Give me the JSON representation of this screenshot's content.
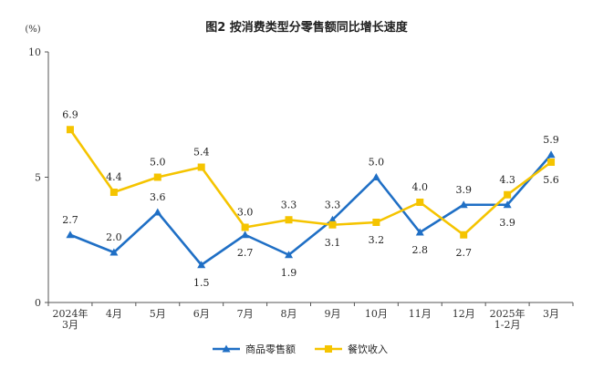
{
  "chart_data": {
    "type": "line",
    "title": "图2  按消费类型分零售额同比增长速度",
    "unit": "(%)",
    "ylim": [
      0,
      10
    ],
    "yticks": [
      "0",
      "5",
      "10"
    ],
    "categories": [
      [
        "2024年",
        "3月"
      ],
      [
        "4月"
      ],
      [
        "5月"
      ],
      [
        "6月"
      ],
      [
        "7月"
      ],
      [
        "8月"
      ],
      [
        "9月"
      ],
      [
        "10月"
      ],
      [
        "11月"
      ],
      [
        "12月"
      ],
      [
        "2025年",
        "1-2月"
      ],
      [
        "3月"
      ]
    ],
    "series": [
      {
        "name": "商品零售额",
        "color": "#1f6fc5",
        "marker": "triangle",
        "values": [
          2.7,
          2.0,
          3.6,
          1.5,
          2.7,
          1.9,
          3.3,
          5.0,
          2.8,
          3.9,
          3.9,
          5.9
        ],
        "labels": [
          "2.7",
          "2.0",
          "3.6",
          "1.5",
          "2.7",
          "1.9",
          "3.3",
          "5.0",
          "2.8",
          "3.9",
          "3.9",
          "5.9"
        ],
        "label_pos": [
          "above",
          "above",
          "above",
          "below",
          "below",
          "below",
          "above",
          "above",
          "below",
          "above",
          "below",
          "above"
        ]
      },
      {
        "name": "餐饮收入",
        "color": "#f5c400",
        "marker": "square",
        "values": [
          6.9,
          4.4,
          5.0,
          5.4,
          3.0,
          3.3,
          3.1,
          3.2,
          4.0,
          2.7,
          4.3,
          5.6
        ],
        "labels": [
          "6.9",
          "4.4",
          "5.0",
          "5.4",
          "3.0",
          "3.3",
          "3.1",
          "3.2",
          "4.0",
          "2.7",
          "4.3",
          "5.6"
        ],
        "label_pos": [
          "above",
          "above",
          "above",
          "above",
          "above",
          "above",
          "below",
          "below",
          "above",
          "below",
          "above",
          "below"
        ]
      }
    ]
  }
}
